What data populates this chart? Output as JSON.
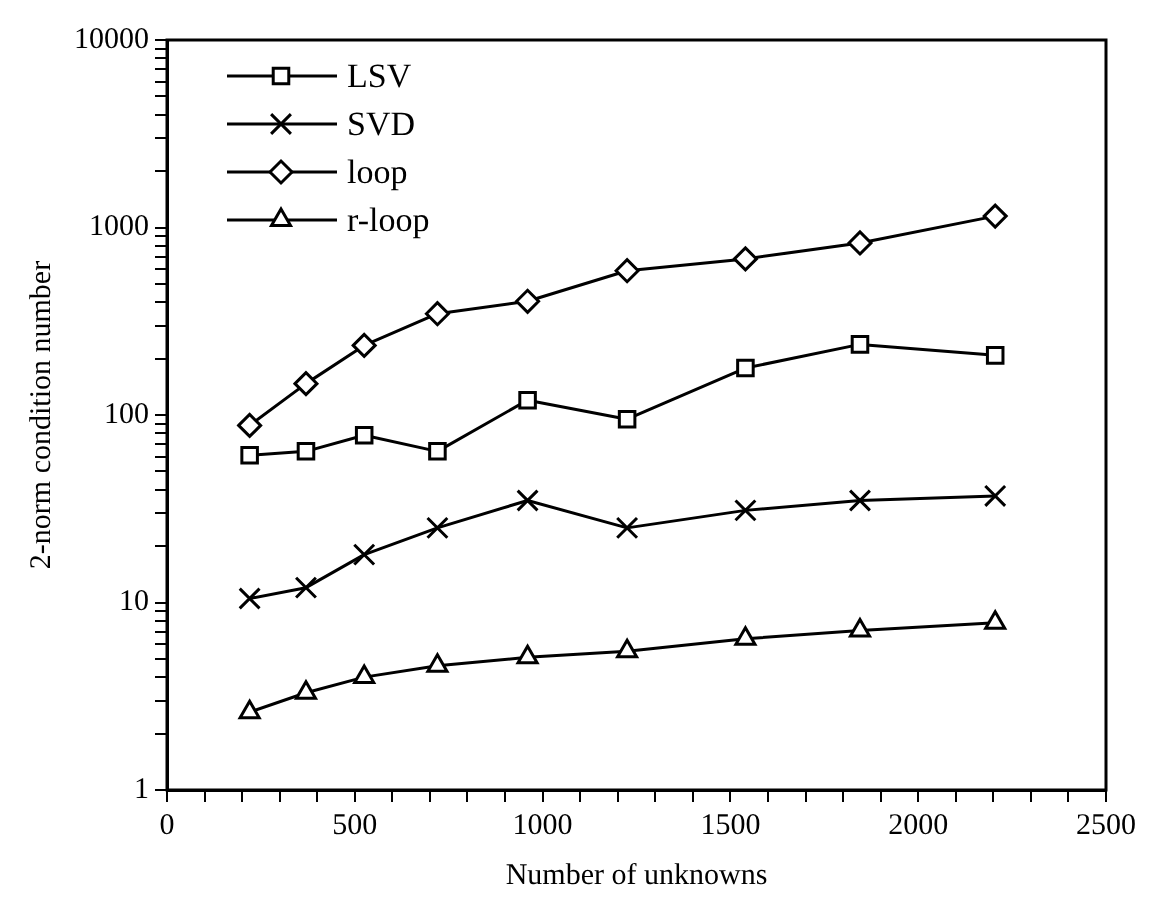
{
  "chart_data": {
    "type": "line",
    "xlabel": "Number of unknowns",
    "ylabel": "2-norm condition number",
    "log": "y",
    "grid": false,
    "legend": "top left",
    "line_style": "solid",
    "xlim": [
      0,
      2500
    ],
    "xticks": [
      0,
      {
        "value": 100,
        "label": null
      },
      {
        "value": 200,
        "label": null
      },
      {
        "value": 300,
        "label": null
      },
      {
        "value": 400,
        "label": null
      },
      500,
      {
        "value": 600,
        "label": null
      },
      {
        "value": 700,
        "label": null
      },
      {
        "value": 800,
        "label": null
      },
      {
        "value": 900,
        "label": null
      },
      1000,
      {
        "value": 1100,
        "label": null
      },
      {
        "value": 1200,
        "label": null
      },
      {
        "value": 1300,
        "label": null
      },
      {
        "value": 1400,
        "label": null
      },
      1500,
      {
        "value": 1600,
        "label": null
      },
      {
        "value": 1700,
        "label": null
      },
      {
        "value": 1800,
        "label": null
      },
      {
        "value": 1900,
        "label": null
      },
      2000,
      {
        "value": 2100,
        "label": null
      },
      {
        "value": 2200,
        "label": null
      },
      {
        "value": 2300,
        "label": null
      },
      {
        "value": 2400,
        "label": null
      },
      2500
    ],
    "ylim": [
      1,
      10000
    ],
    "yticks": [
      1,
      {
        "value": 2,
        "label": null
      },
      {
        "value": 3,
        "label": null
      },
      {
        "value": 4,
        "label": null
      },
      {
        "value": 5,
        "label": null
      },
      {
        "value": 6,
        "label": null
      },
      {
        "value": 7,
        "label": null
      },
      {
        "value": 8,
        "label": null
      },
      {
        "value": 9,
        "label": null
      },
      10,
      {
        "value": 20,
        "label": null
      },
      {
        "value": 30,
        "label": null
      },
      {
        "value": 40,
        "label": null
      },
      {
        "value": 50,
        "label": null
      },
      {
        "value": 60,
        "label": null
      },
      {
        "value": 70,
        "label": null
      },
      {
        "value": 80,
        "label": null
      },
      {
        "value": 90,
        "label": null
      },
      100,
      {
        "value": 200,
        "label": null
      },
      {
        "value": 300,
        "label": null
      },
      {
        "value": 400,
        "label": null
      },
      {
        "value": 500,
        "label": null
      },
      {
        "value": 600,
        "label": null
      },
      {
        "value": 700,
        "label": null
      },
      {
        "value": 800,
        "label": null
      },
      {
        "value": 900,
        "label": null
      },
      1000,
      {
        "value": 2000,
        "label": null
      },
      {
        "value": 3000,
        "label": null
      },
      {
        "value": 4000,
        "label": null
      },
      {
        "value": 5000,
        "label": null
      },
      {
        "value": 6000,
        "label": null
      },
      {
        "value": 7000,
        "label": null
      },
      {
        "value": 8000,
        "label": null
      },
      {
        "value": 9000,
        "label": null
      },
      10000
    ],
    "x": [
      220,
      370,
      525,
      720,
      960,
      1225,
      1540,
      1845,
      2205
    ],
    "series": [
      {
        "name": "LSV",
        "color": "#000000",
        "marker": "square",
        "values": [
          61,
          64,
          78,
          64,
          120,
          95,
          178,
          238,
          208
        ]
      },
      {
        "name": "SVD",
        "color": "#000000",
        "marker": "cross",
        "values": [
          10.5,
          12,
          18,
          25,
          35,
          25,
          31,
          35,
          37
        ]
      },
      {
        "name": "loop",
        "color": "#000000",
        "marker": "diamond",
        "values": [
          88,
          147,
          235,
          347,
          404,
          588,
          680,
          827,
          1150
        ]
      },
      {
        "name": "r-loop",
        "color": "#000000",
        "marker": "triangle",
        "values": [
          2.6,
          3.3,
          4,
          4.6,
          5.1,
          5.5,
          6.4,
          7.1,
          7.8
        ]
      }
    ]
  }
}
